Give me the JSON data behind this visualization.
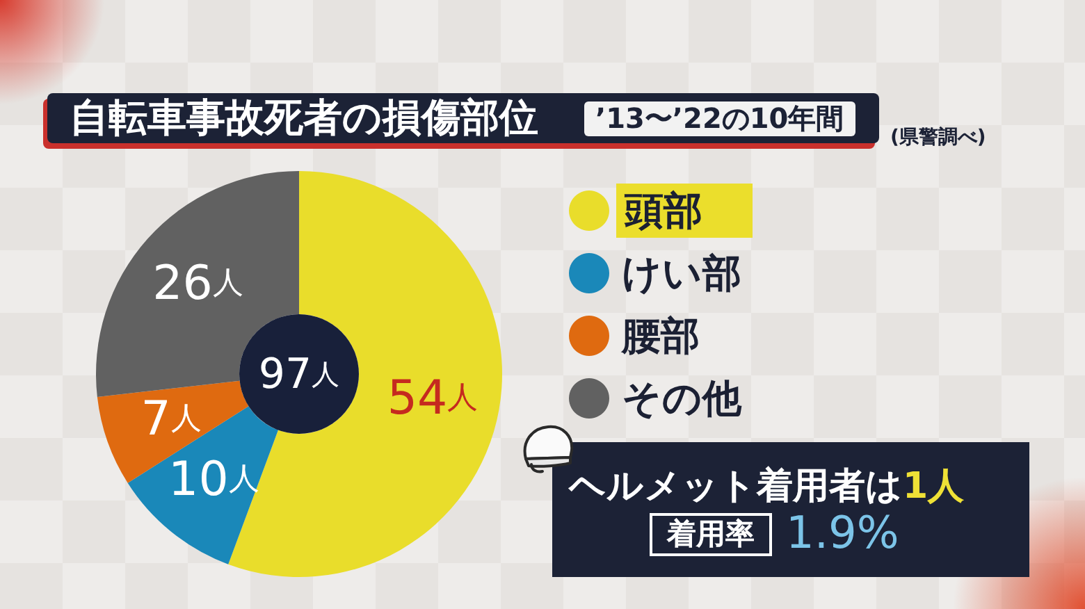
{
  "chart_data": {
    "type": "donut",
    "title": "自転車事故死者の損傷部位",
    "subtitle": "’13〜’22の10年間",
    "categories": [
      "頭部",
      "けい部",
      "腰部",
      "その他"
    ],
    "values": [
      54,
      10,
      7,
      26
    ],
    "colors": [
      "#e9dd2b",
      "#1a88b9",
      "#df6a10",
      "#616161"
    ],
    "value_labels": [
      "54人",
      "10人",
      "7人",
      "26人"
    ],
    "legend": "right",
    "annotations": [
      "97人",
      "(県警調べ)",
      "ヘルメット着用者は1人",
      "着用率",
      "1.9%"
    ]
  }
}
